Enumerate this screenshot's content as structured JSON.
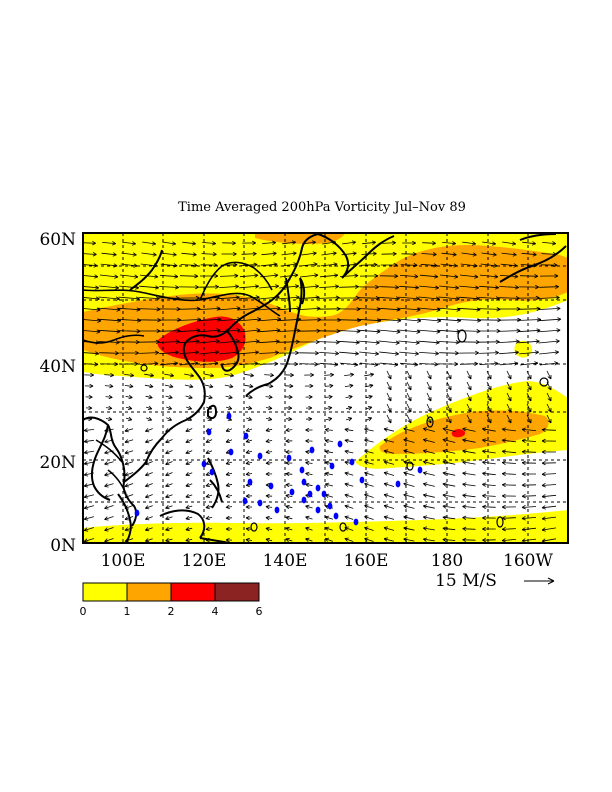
{
  "map": {
    "title": "Time Averaged 200hPa Vorticity Jul–Nov 89",
    "lat_labels": [
      "60N",
      "40N",
      "20N",
      "0N"
    ],
    "lon_labels": [
      "100E",
      "120E",
      "140E",
      "160E",
      "180",
      "160W"
    ],
    "lat_range": [
      0,
      60
    ],
    "lon_range": [
      90,
      210
    ],
    "wind_reference": {
      "label": "15 M/S",
      "speed": 15
    },
    "colorbar": {
      "labels": [
        "0",
        "1",
        "2",
        "4",
        "6"
      ],
      "colors": [
        "#ffff00",
        "#ffa500",
        "#ff0000",
        "#8b2323"
      ]
    },
    "colors": {
      "coast": "#000000",
      "storm_points": "#0000ff",
      "background": "#ffffff"
    }
  }
}
